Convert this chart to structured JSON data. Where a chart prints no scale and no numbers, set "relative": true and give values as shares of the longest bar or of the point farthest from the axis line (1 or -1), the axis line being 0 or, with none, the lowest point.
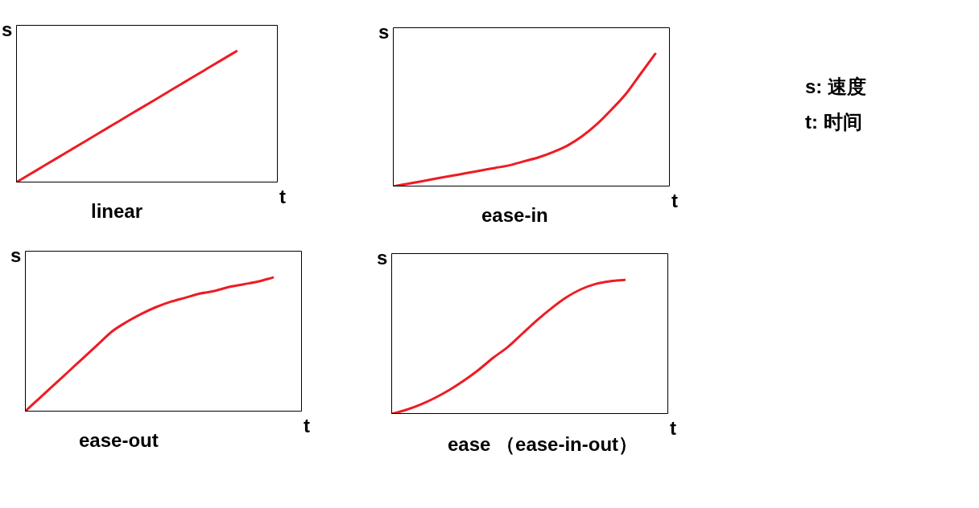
{
  "chart_data": [
    {
      "type": "line",
      "title": "linear",
      "xlabel": "t",
      "ylabel": "s",
      "relative": true,
      "marker": "none",
      "categories": [
        null,
        null,
        null,
        null,
        null,
        null,
        null,
        null,
        null,
        null,
        null,
        null,
        null,
        null,
        null,
        null,
        null,
        null,
        null,
        null
      ],
      "series": [
        {
          "color": "#ed1c24",
          "values": [
            0,
            0.0625,
            0.125,
            0.1875,
            0.25,
            0.3125,
            0.375,
            0.4375,
            0.5,
            0.5625,
            0.625,
            0.6875,
            0.75,
            0.8125,
            0.875,
            0.9375,
            1,
            null,
            null,
            null
          ]
        }
      ]
    },
    {
      "type": "line",
      "title": "ease-in",
      "xlabel": "t",
      "ylabel": "s",
      "relative": true,
      "marker": "none",
      "categories": [
        null,
        null,
        null,
        null,
        null,
        null,
        null,
        null,
        null,
        null,
        null,
        null,
        null,
        null,
        null,
        null,
        null,
        null,
        null,
        null
      ],
      "series": [
        {
          "color": "#ed1c24",
          "values": [
            0,
            0.02,
            0.04,
            0.06,
            0.08,
            0.1,
            0.12,
            0.14,
            0.16,
            0.19,
            0.22,
            0.26,
            0.31,
            0.38,
            0.47,
            0.58,
            0.7,
            0.85,
            1,
            null
          ]
        }
      ]
    },
    {
      "type": "line",
      "title": "ease-out",
      "xlabel": "t",
      "ylabel": "s",
      "relative": true,
      "marker": "none",
      "categories": [
        null,
        null,
        null,
        null,
        null,
        null,
        null,
        null,
        null,
        null,
        null,
        null,
        null,
        null,
        null,
        null,
        null,
        null,
        null,
        null
      ],
      "series": [
        {
          "color": "#ed1c24",
          "values": [
            0,
            0.1,
            0.2,
            0.3,
            0.4,
            0.5,
            0.6,
            0.67,
            0.73,
            0.78,
            0.82,
            0.85,
            0.88,
            0.9,
            0.93,
            0.95,
            0.97,
            1,
            null,
            null
          ]
        }
      ]
    },
    {
      "type": "line",
      "title": "ease （ease-in-out）",
      "xlabel": "t",
      "ylabel": "s",
      "relative": true,
      "marker": "none",
      "categories": [
        null,
        null,
        null,
        null,
        null,
        null,
        null,
        null,
        null,
        null,
        null,
        null,
        null,
        null,
        null,
        null,
        null,
        null,
        null,
        null
      ],
      "series": [
        {
          "color": "#ed1c24",
          "values": [
            0,
            0.03,
            0.07,
            0.12,
            0.18,
            0.25,
            0.33,
            0.42,
            0.5,
            0.6,
            0.7,
            0.79,
            0.87,
            0.93,
            0.97,
            0.99,
            1,
            null,
            null,
            null
          ]
        }
      ]
    },
    {
      "type": "other",
      "annotations": [
        "s: 速度",
        "t: 时间"
      ]
    }
  ]
}
